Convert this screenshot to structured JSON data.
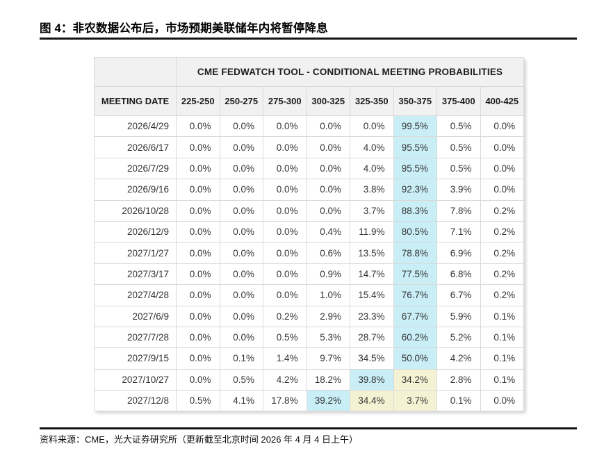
{
  "figure": {
    "title": "图 4：非农数据公布后，市场预期美联储年内将暂停降息",
    "source": "资料来源：CME，光大证券研究所（更新截至北京时间 2026 年 4 月 4 日上午）"
  },
  "colors": {
    "highlight_cyan": "#c9eef6",
    "highlight_yellow": "#f5f2d4",
    "header_bg": "#f1f1f1",
    "cell_border": "#d9d9d9",
    "rule": "#141414"
  },
  "chart_data": {
    "type": "table",
    "title": "CME FEDWATCH TOOL - CONDITIONAL MEETING PROBABILITIES",
    "date_column_header": "MEETING DATE",
    "rate_range_headers": [
      "225-250",
      "250-275",
      "275-300",
      "300-325",
      "325-350",
      "350-375",
      "375-400",
      "400-425"
    ],
    "rows": [
      {
        "date": "2026/4/29",
        "values": [
          "0.0%",
          "0.0%",
          "0.0%",
          "0.0%",
          "0.0%",
          "99.5%",
          "0.5%",
          "0.0%"
        ],
        "cyan": [
          5
        ],
        "yellow": []
      },
      {
        "date": "2026/6/17",
        "values": [
          "0.0%",
          "0.0%",
          "0.0%",
          "0.0%",
          "4.0%",
          "95.5%",
          "0.5%",
          "0.0%"
        ],
        "cyan": [
          5
        ],
        "yellow": []
      },
      {
        "date": "2026/7/29",
        "values": [
          "0.0%",
          "0.0%",
          "0.0%",
          "0.0%",
          "4.0%",
          "95.5%",
          "0.5%",
          "0.0%"
        ],
        "cyan": [
          5
        ],
        "yellow": []
      },
      {
        "date": "2026/9/16",
        "values": [
          "0.0%",
          "0.0%",
          "0.0%",
          "0.0%",
          "3.8%",
          "92.3%",
          "3.9%",
          "0.0%"
        ],
        "cyan": [
          5
        ],
        "yellow": []
      },
      {
        "date": "2026/10/28",
        "values": [
          "0.0%",
          "0.0%",
          "0.0%",
          "0.0%",
          "3.7%",
          "88.3%",
          "7.8%",
          "0.2%"
        ],
        "cyan": [
          5
        ],
        "yellow": []
      },
      {
        "date": "2026/12/9",
        "values": [
          "0.0%",
          "0.0%",
          "0.0%",
          "0.4%",
          "11.9%",
          "80.5%",
          "7.1%",
          "0.2%"
        ],
        "cyan": [
          5
        ],
        "yellow": []
      },
      {
        "date": "2027/1/27",
        "values": [
          "0.0%",
          "0.0%",
          "0.0%",
          "0.6%",
          "13.5%",
          "78.8%",
          "6.9%",
          "0.2%"
        ],
        "cyan": [
          5
        ],
        "yellow": []
      },
      {
        "date": "2027/3/17",
        "values": [
          "0.0%",
          "0.0%",
          "0.0%",
          "0.9%",
          "14.7%",
          "77.5%",
          "6.8%",
          "0.2%"
        ],
        "cyan": [
          5
        ],
        "yellow": []
      },
      {
        "date": "2027/4/28",
        "values": [
          "0.0%",
          "0.0%",
          "0.0%",
          "1.0%",
          "15.4%",
          "76.7%",
          "6.7%",
          "0.2%"
        ],
        "cyan": [
          5
        ],
        "yellow": []
      },
      {
        "date": "2027/6/9",
        "values": [
          "0.0%",
          "0.0%",
          "0.2%",
          "2.9%",
          "23.3%",
          "67.7%",
          "5.9%",
          "0.1%"
        ],
        "cyan": [
          5
        ],
        "yellow": []
      },
      {
        "date": "2027/7/28",
        "values": [
          "0.0%",
          "0.0%",
          "0.5%",
          "5.3%",
          "28.7%",
          "60.2%",
          "5.2%",
          "0.1%"
        ],
        "cyan": [
          5
        ],
        "yellow": []
      },
      {
        "date": "2027/9/15",
        "values": [
          "0.0%",
          "0.1%",
          "1.4%",
          "9.7%",
          "34.5%",
          "50.0%",
          "4.2%",
          "0.1%"
        ],
        "cyan": [
          5
        ],
        "yellow": []
      },
      {
        "date": "2027/10/27",
        "values": [
          "0.0%",
          "0.5%",
          "4.2%",
          "18.2%",
          "39.8%",
          "34.2%",
          "2.8%",
          "0.1%"
        ],
        "cyan": [
          4
        ],
        "yellow": [
          5
        ]
      },
      {
        "date": "2027/12/8",
        "values": [
          "0.5%",
          "4.1%",
          "17.8%",
          "39.2%",
          "34.4%",
          "3.7%",
          "0.1%",
          "0.0%"
        ],
        "cyan": [
          3
        ],
        "yellow": [
          4,
          5
        ]
      }
    ]
  }
}
